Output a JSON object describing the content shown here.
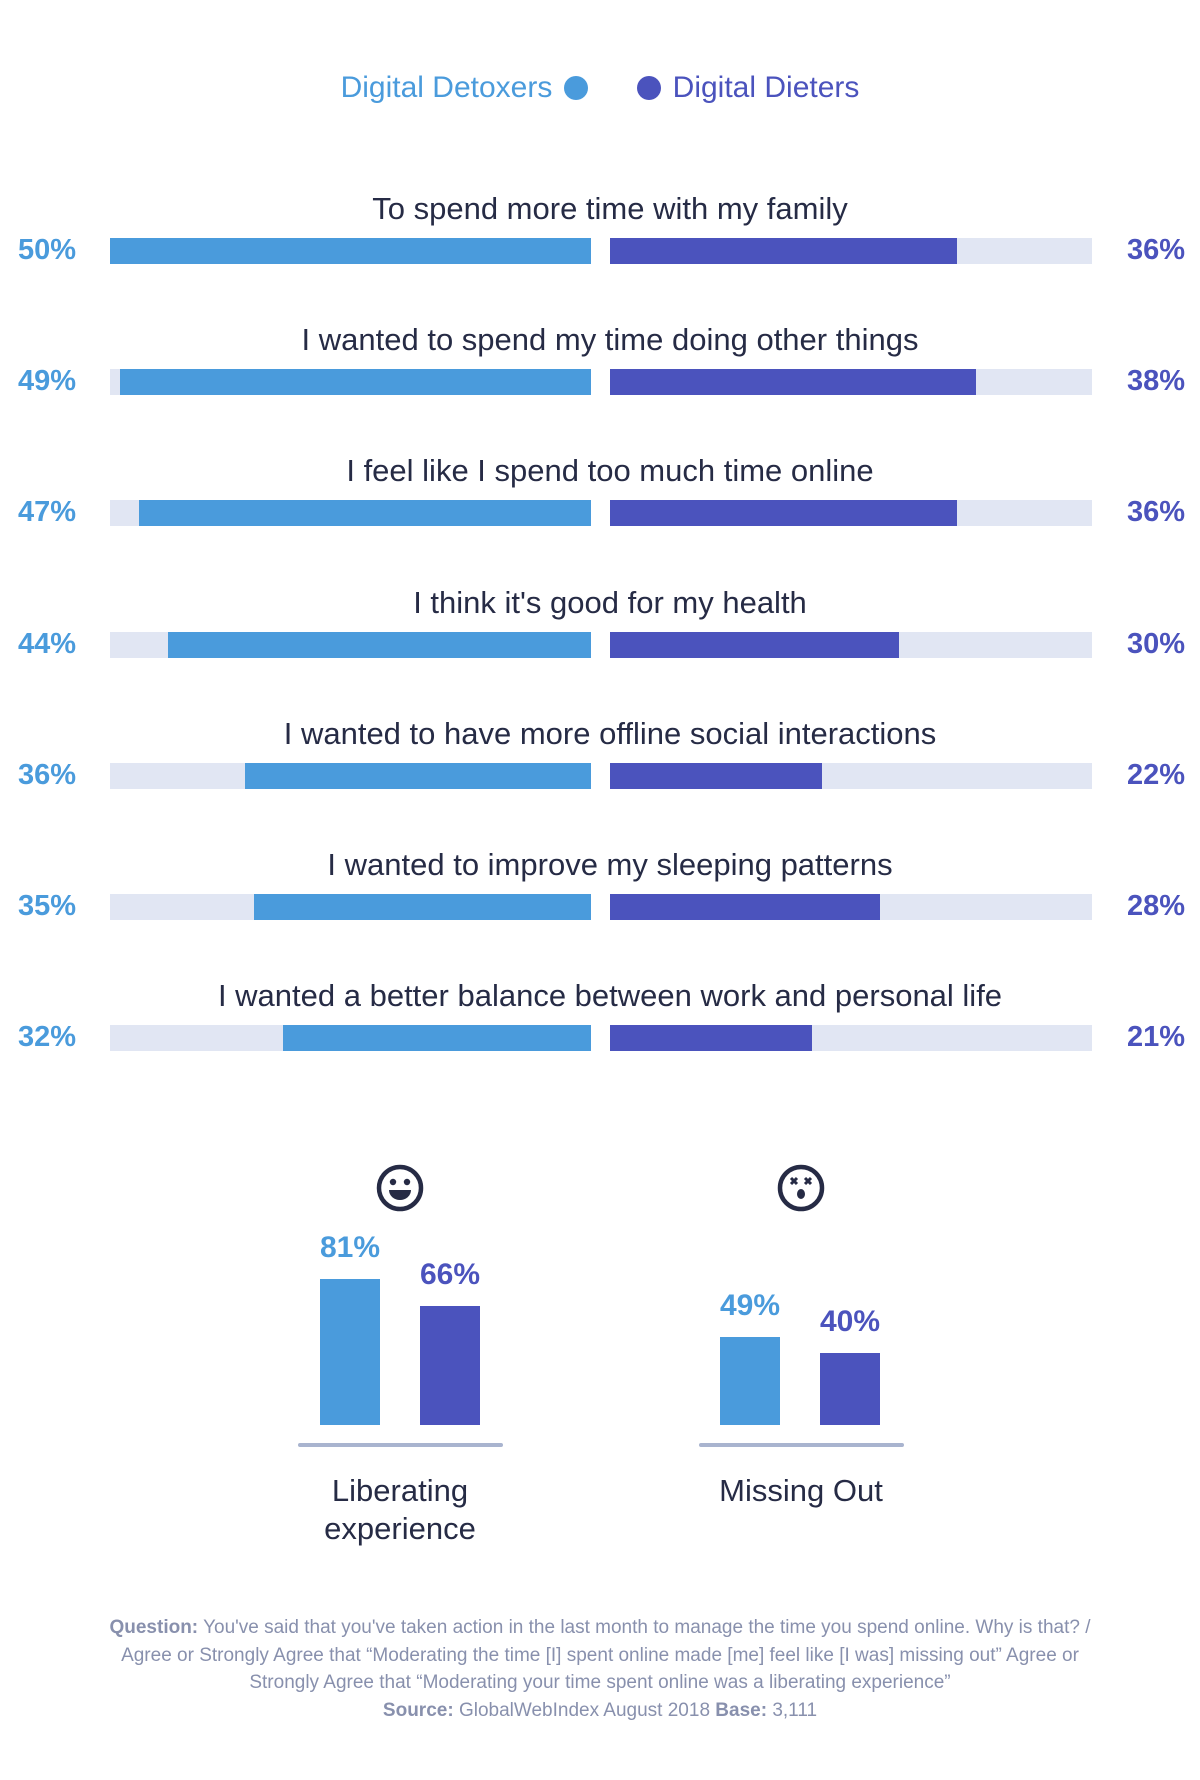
{
  "colors": {
    "detoxers": "#4a9bdc",
    "dieters": "#4b53bd",
    "track": "#e1e6f3",
    "text": "#262b45",
    "footnote": "#8890ad"
  },
  "legend": {
    "detoxers": "Digital Detoxers",
    "dieters": "Digital Dieters"
  },
  "chart_data": [
    {
      "type": "bar",
      "orientation": "horizontal-diverging",
      "categories": [
        "To spend more time with my family",
        "I wanted to spend my time doing other things",
        "I feel like I spend too much time online",
        "I think it's good for my health",
        "I wanted to have more offline social interactions",
        "I wanted to improve my sleeping patterns",
        "I wanted a better balance between work and personal life"
      ],
      "series": [
        {
          "name": "Digital Detoxers",
          "values": [
            50,
            49,
            47,
            44,
            36,
            35,
            32
          ],
          "labels": [
            "50%",
            "49%",
            "47%",
            "44%",
            "36%",
            "35%",
            "32%"
          ]
        },
        {
          "name": "Digital Dieters",
          "values": [
            36,
            38,
            36,
            30,
            22,
            28,
            21
          ],
          "labels": [
            "36%",
            "38%",
            "36%",
            "30%",
            "22%",
            "28%",
            "21%"
          ]
        }
      ],
      "xlim": [
        0,
        50
      ],
      "legend": "top-center"
    },
    {
      "type": "bar",
      "categories": [
        "Liberating experience",
        "Missing Out"
      ],
      "category_lines": [
        [
          "Liberating",
          "experience"
        ],
        [
          "Missing Out"
        ]
      ],
      "icons": [
        "smiling-face-icon",
        "dizzy-shocked-face-icon"
      ],
      "series": [
        {
          "name": "Digital Detoxers",
          "values": [
            81,
            49
          ],
          "labels": [
            "81%",
            "49%"
          ]
        },
        {
          "name": "Digital Dieters",
          "values": [
            66,
            40
          ],
          "labels": [
            "66%",
            "40%"
          ]
        }
      ],
      "ylim": [
        0,
        100
      ]
    }
  ],
  "footnote": {
    "question_label": "Question:",
    "question_text": "You've said that you've taken action in the last month to manage the time you spend online. Why is that? / Agree or Strongly Agree that “Moderating the time [I] spent online made [me]  feel like [I was] missing out” Agree or Strongly Agree that “Moderating your time spent online was a liberating experience”",
    "source_label": "Source:",
    "source_text": "GlobalWebIndex August 2018",
    "base_label": "Base:",
    "base_text": "3,111"
  }
}
